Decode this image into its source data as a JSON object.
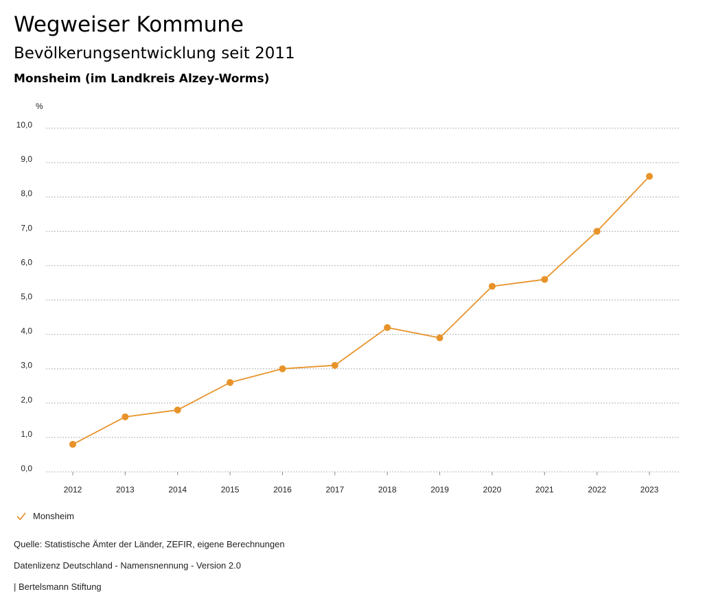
{
  "header": {
    "title": "Wegweiser Kommune",
    "subtitle": "Bevölkerungsentwicklung seit 2011",
    "region": "Monsheim (im Landkreis Alzey-Worms)"
  },
  "chart_data": {
    "type": "line",
    "title": "Bevölkerungsentwicklung seit 2011",
    "xlabel": "",
    "ylabel": "%",
    "ylim": [
      0,
      10
    ],
    "yticks": [
      "0,0",
      "1,0",
      "2,0",
      "3,0",
      "4,0",
      "5,0",
      "6,0",
      "7,0",
      "8,0",
      "9,0",
      "10,0"
    ],
    "categories": [
      "2012",
      "2013",
      "2014",
      "2015",
      "2016",
      "2017",
      "2018",
      "2019",
      "2020",
      "2021",
      "2022",
      "2023"
    ],
    "series": [
      {
        "name": "Monsheim",
        "color": "#e8932a",
        "values": [
          0.8,
          1.6,
          1.8,
          2.6,
          3.0,
          3.1,
          4.2,
          3.9,
          5.4,
          5.6,
          7.0,
          8.6
        ]
      }
    ],
    "grid": true,
    "legend": "bottom-left"
  },
  "footer": {
    "source": "Quelle: Statistische Ämter der Länder, ZEFIR, eigene Berechnungen",
    "license": "Datenlizenz Deutschland - Namensnennung - Version 2.0",
    "publisher": "| Bertelsmann Stiftung"
  }
}
